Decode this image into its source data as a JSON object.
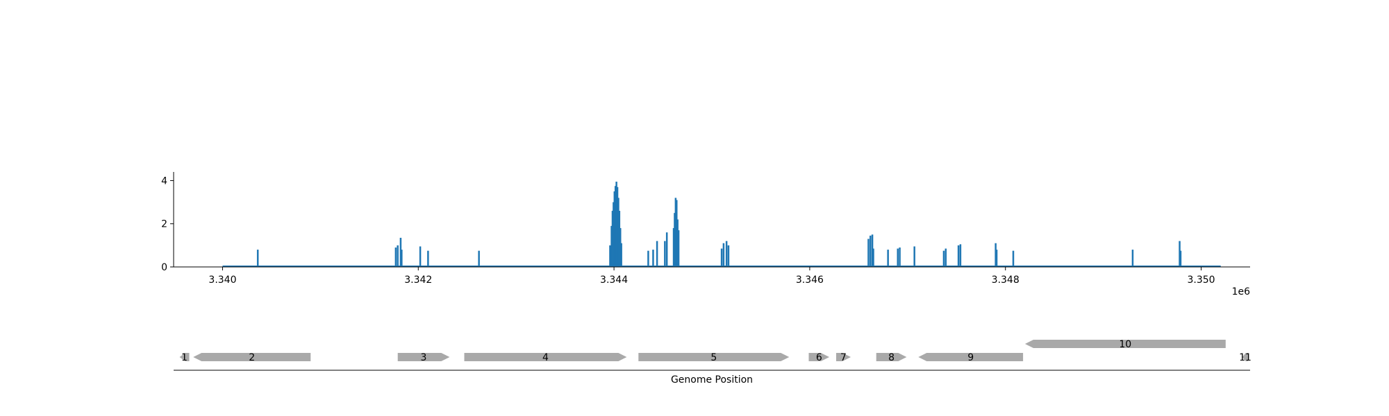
{
  "chart_data": [
    {
      "type": "bar",
      "title": "",
      "xlabel": "",
      "ylabel": "",
      "x_offset_text": "1e6",
      "xlim": [
        3339500,
        3350500
      ],
      "ylim": [
        0,
        4.4
      ],
      "x_ticks": [
        3340000,
        3342000,
        3344000,
        3346000,
        3348000,
        3350000
      ],
      "x_tick_labels": [
        "3.340",
        "3.342",
        "3.344",
        "3.346",
        "3.348",
        "3.350"
      ],
      "y_ticks": [
        0,
        2,
        4
      ],
      "y_tick_labels": [
        "0",
        "2",
        "4"
      ],
      "baseline_range": [
        3340000,
        3350200
      ],
      "grid": false,
      "series": [
        {
          "color": "#1f77b4",
          "points": [
            [
              3340360,
              0.8
            ],
            [
              3341770,
              0.9
            ],
            [
              3341790,
              1.0
            ],
            [
              3341820,
              1.35
            ],
            [
              3341830,
              0.8
            ],
            [
              3342020,
              0.95
            ],
            [
              3342100,
              0.75
            ],
            [
              3342620,
              0.75
            ],
            [
              3343960,
              1.0
            ],
            [
              3343975,
              1.9
            ],
            [
              3343985,
              2.6
            ],
            [
              3343995,
              3.0
            ],
            [
              3344005,
              3.5
            ],
            [
              3344015,
              3.75
            ],
            [
              3344025,
              3.95
            ],
            [
              3344035,
              3.7
            ],
            [
              3344045,
              3.2
            ],
            [
              3344055,
              2.6
            ],
            [
              3344065,
              1.8
            ],
            [
              3344075,
              1.1
            ],
            [
              3344350,
              0.75
            ],
            [
              3344400,
              0.8
            ],
            [
              3344440,
              1.2
            ],
            [
              3344520,
              1.2
            ],
            [
              3344540,
              1.6
            ],
            [
              3344610,
              1.8
            ],
            [
              3344620,
              2.5
            ],
            [
              3344630,
              3.2
            ],
            [
              3344640,
              3.1
            ],
            [
              3344650,
              2.2
            ],
            [
              3344660,
              1.7
            ],
            [
              3345100,
              0.85
            ],
            [
              3345120,
              1.1
            ],
            [
              3345150,
              1.2
            ],
            [
              3345170,
              1.0
            ],
            [
              3346600,
              1.3
            ],
            [
              3346620,
              1.45
            ],
            [
              3346640,
              1.5
            ],
            [
              3346650,
              0.85
            ],
            [
              3346800,
              0.8
            ],
            [
              3346900,
              0.85
            ],
            [
              3346920,
              0.9
            ],
            [
              3347070,
              0.95
            ],
            [
              3347370,
              0.75
            ],
            [
              3347390,
              0.85
            ],
            [
              3347520,
              1.0
            ],
            [
              3347540,
              1.05
            ],
            [
              3347900,
              1.1
            ],
            [
              3347910,
              0.8
            ],
            [
              3348080,
              0.75
            ],
            [
              3349300,
              0.8
            ],
            [
              3349780,
              1.2
            ],
            [
              3349790,
              0.75
            ]
          ]
        }
      ]
    },
    {
      "type": "gene-track",
      "xlabel": "Genome Position",
      "xlim": [
        3339500,
        3350500
      ],
      "feature_color": "#a9a9a9",
      "features": [
        {
          "label": "1",
          "start": 3339560,
          "end": 3339660,
          "strand": "-",
          "row": 0
        },
        {
          "label": "2",
          "start": 3339700,
          "end": 3340900,
          "strand": "-",
          "row": 0
        },
        {
          "label": "3",
          "start": 3341790,
          "end": 3342320,
          "strand": "+",
          "row": 0
        },
        {
          "label": "4",
          "start": 3342470,
          "end": 3344130,
          "strand": "+",
          "row": 0
        },
        {
          "label": "5",
          "start": 3344250,
          "end": 3345790,
          "strand": "+",
          "row": 0
        },
        {
          "label": "6",
          "start": 3345990,
          "end": 3346200,
          "strand": "+",
          "row": 0
        },
        {
          "label": "7",
          "start": 3346270,
          "end": 3346420,
          "strand": "+",
          "row": 0
        },
        {
          "label": "8",
          "start": 3346680,
          "end": 3346990,
          "strand": "+",
          "row": 0
        },
        {
          "label": "9",
          "start": 3347110,
          "end": 3348180,
          "strand": "-",
          "row": 0
        },
        {
          "label": "10",
          "start": 3348200,
          "end": 3350250,
          "strand": "-",
          "row": 1
        },
        {
          "label": "11",
          "start": 3350420,
          "end": 3350480,
          "strand": "-",
          "row": 0
        }
      ]
    }
  ]
}
